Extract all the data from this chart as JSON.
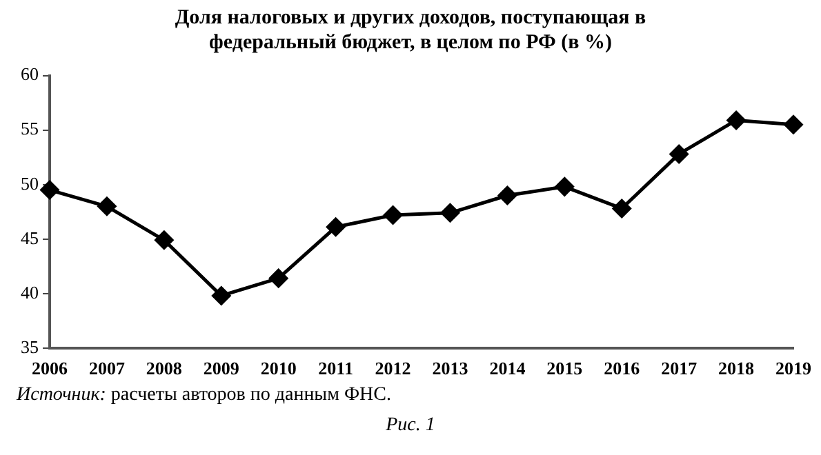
{
  "chart_data": {
    "type": "line",
    "title": "Доля налоговых и других доходов, поступающая в федеральный бюджет, в целом по РФ (в %)",
    "categories": [
      "2006",
      "2007",
      "2008",
      "2009",
      "2010",
      "2011",
      "2012",
      "2013",
      "2014",
      "2015",
      "2016",
      "2017",
      "2018",
      "2019"
    ],
    "series": [
      {
        "color": "#000000",
        "values": [
          49.5,
          48,
          44.9,
          39.8,
          41.4,
          46.1,
          47.2,
          47.4,
          49,
          49.8,
          47.8,
          52.8,
          55.9,
          55.5
        ]
      }
    ],
    "ylim": [
      35,
      60
    ],
    "yticks": [
      35,
      40,
      45,
      50,
      55,
      60
    ],
    "grid": false,
    "legend": false,
    "marker": "diamond",
    "line_style": "solid",
    "annotations": [
      "Источник: расчеты авторов по данным ФНС.",
      "Рис. 1"
    ]
  }
}
